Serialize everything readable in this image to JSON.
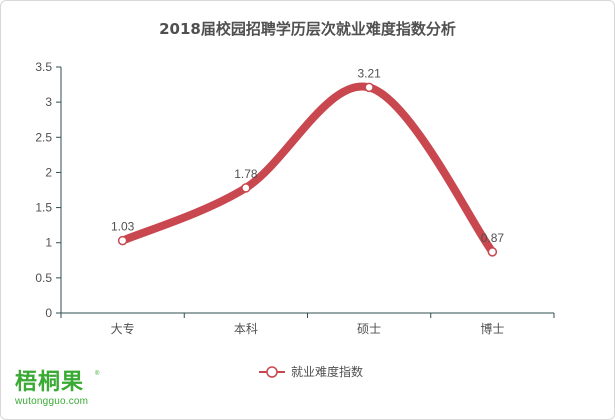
{
  "chart_data": {
    "type": "line",
    "title": "2018届校园招聘学历层次就业难度指数分析",
    "categories": [
      "大专",
      "本科",
      "硕士",
      "博士"
    ],
    "series": [
      {
        "name": "就业难度指数",
        "values": [
          1.03,
          1.78,
          3.21,
          0.87
        ],
        "data_labels": [
          "1.03",
          "1.78",
          "3.21",
          "0.87"
        ]
      }
    ],
    "y_ticks": [
      "0",
      "0.5",
      "1",
      "1.5",
      "2",
      "2.5",
      "3",
      "3.5"
    ],
    "ylim": [
      0,
      3.5
    ],
    "smooth": true,
    "grid": false,
    "legend_position": "bottom",
    "colors": {
      "series": "#c9474f",
      "axis": "#2f4f4f",
      "text": "#505050"
    }
  },
  "watermark": {
    "brand_cn": "梧桐果",
    "registered": "®",
    "url": "wutongguo.com"
  }
}
